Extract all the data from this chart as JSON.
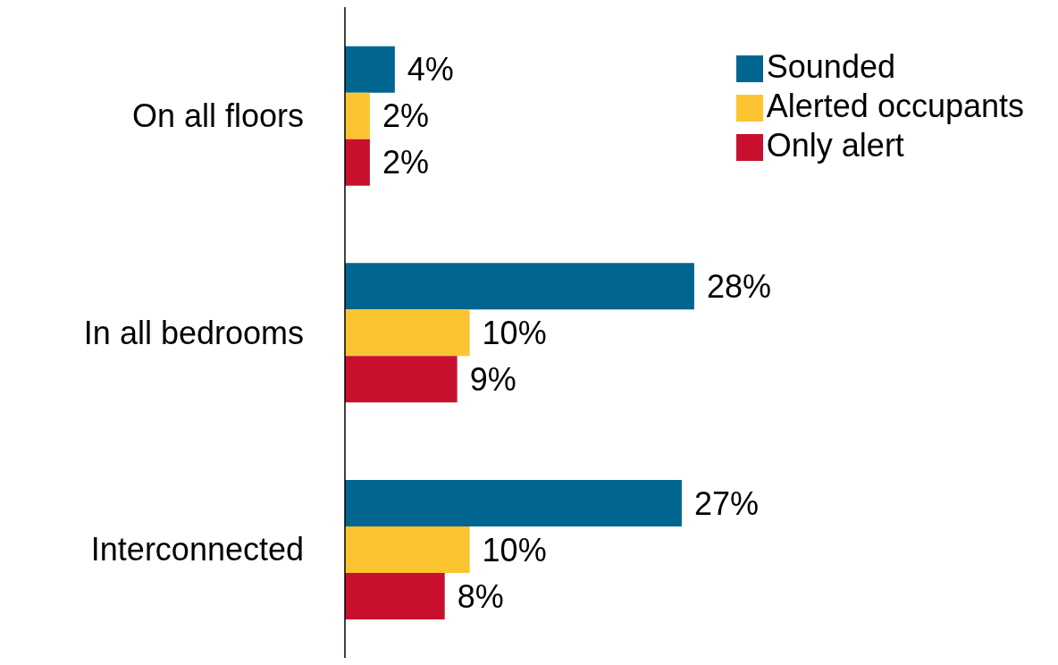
{
  "chart_data": {
    "type": "bar",
    "orientation": "horizontal",
    "categories": [
      "On all floors",
      "In all bedrooms",
      "Interconnected"
    ],
    "series": [
      {
        "name": "Sounded",
        "color": "#006690",
        "values": [
          4,
          28,
          27
        ],
        "value_labels": [
          "4%",
          "28%",
          "27%"
        ]
      },
      {
        "name": "Alerted occupants",
        "color": "#fdc431",
        "values": [
          2,
          10,
          10
        ],
        "value_labels": [
          "2%",
          "10%",
          "10%"
        ]
      },
      {
        "name": "Only alert",
        "color": "#c8102e",
        "values": [
          2,
          9,
          8
        ],
        "value_labels": [
          "2%",
          "9%",
          "8%"
        ]
      }
    ],
    "legend": "top right"
  }
}
